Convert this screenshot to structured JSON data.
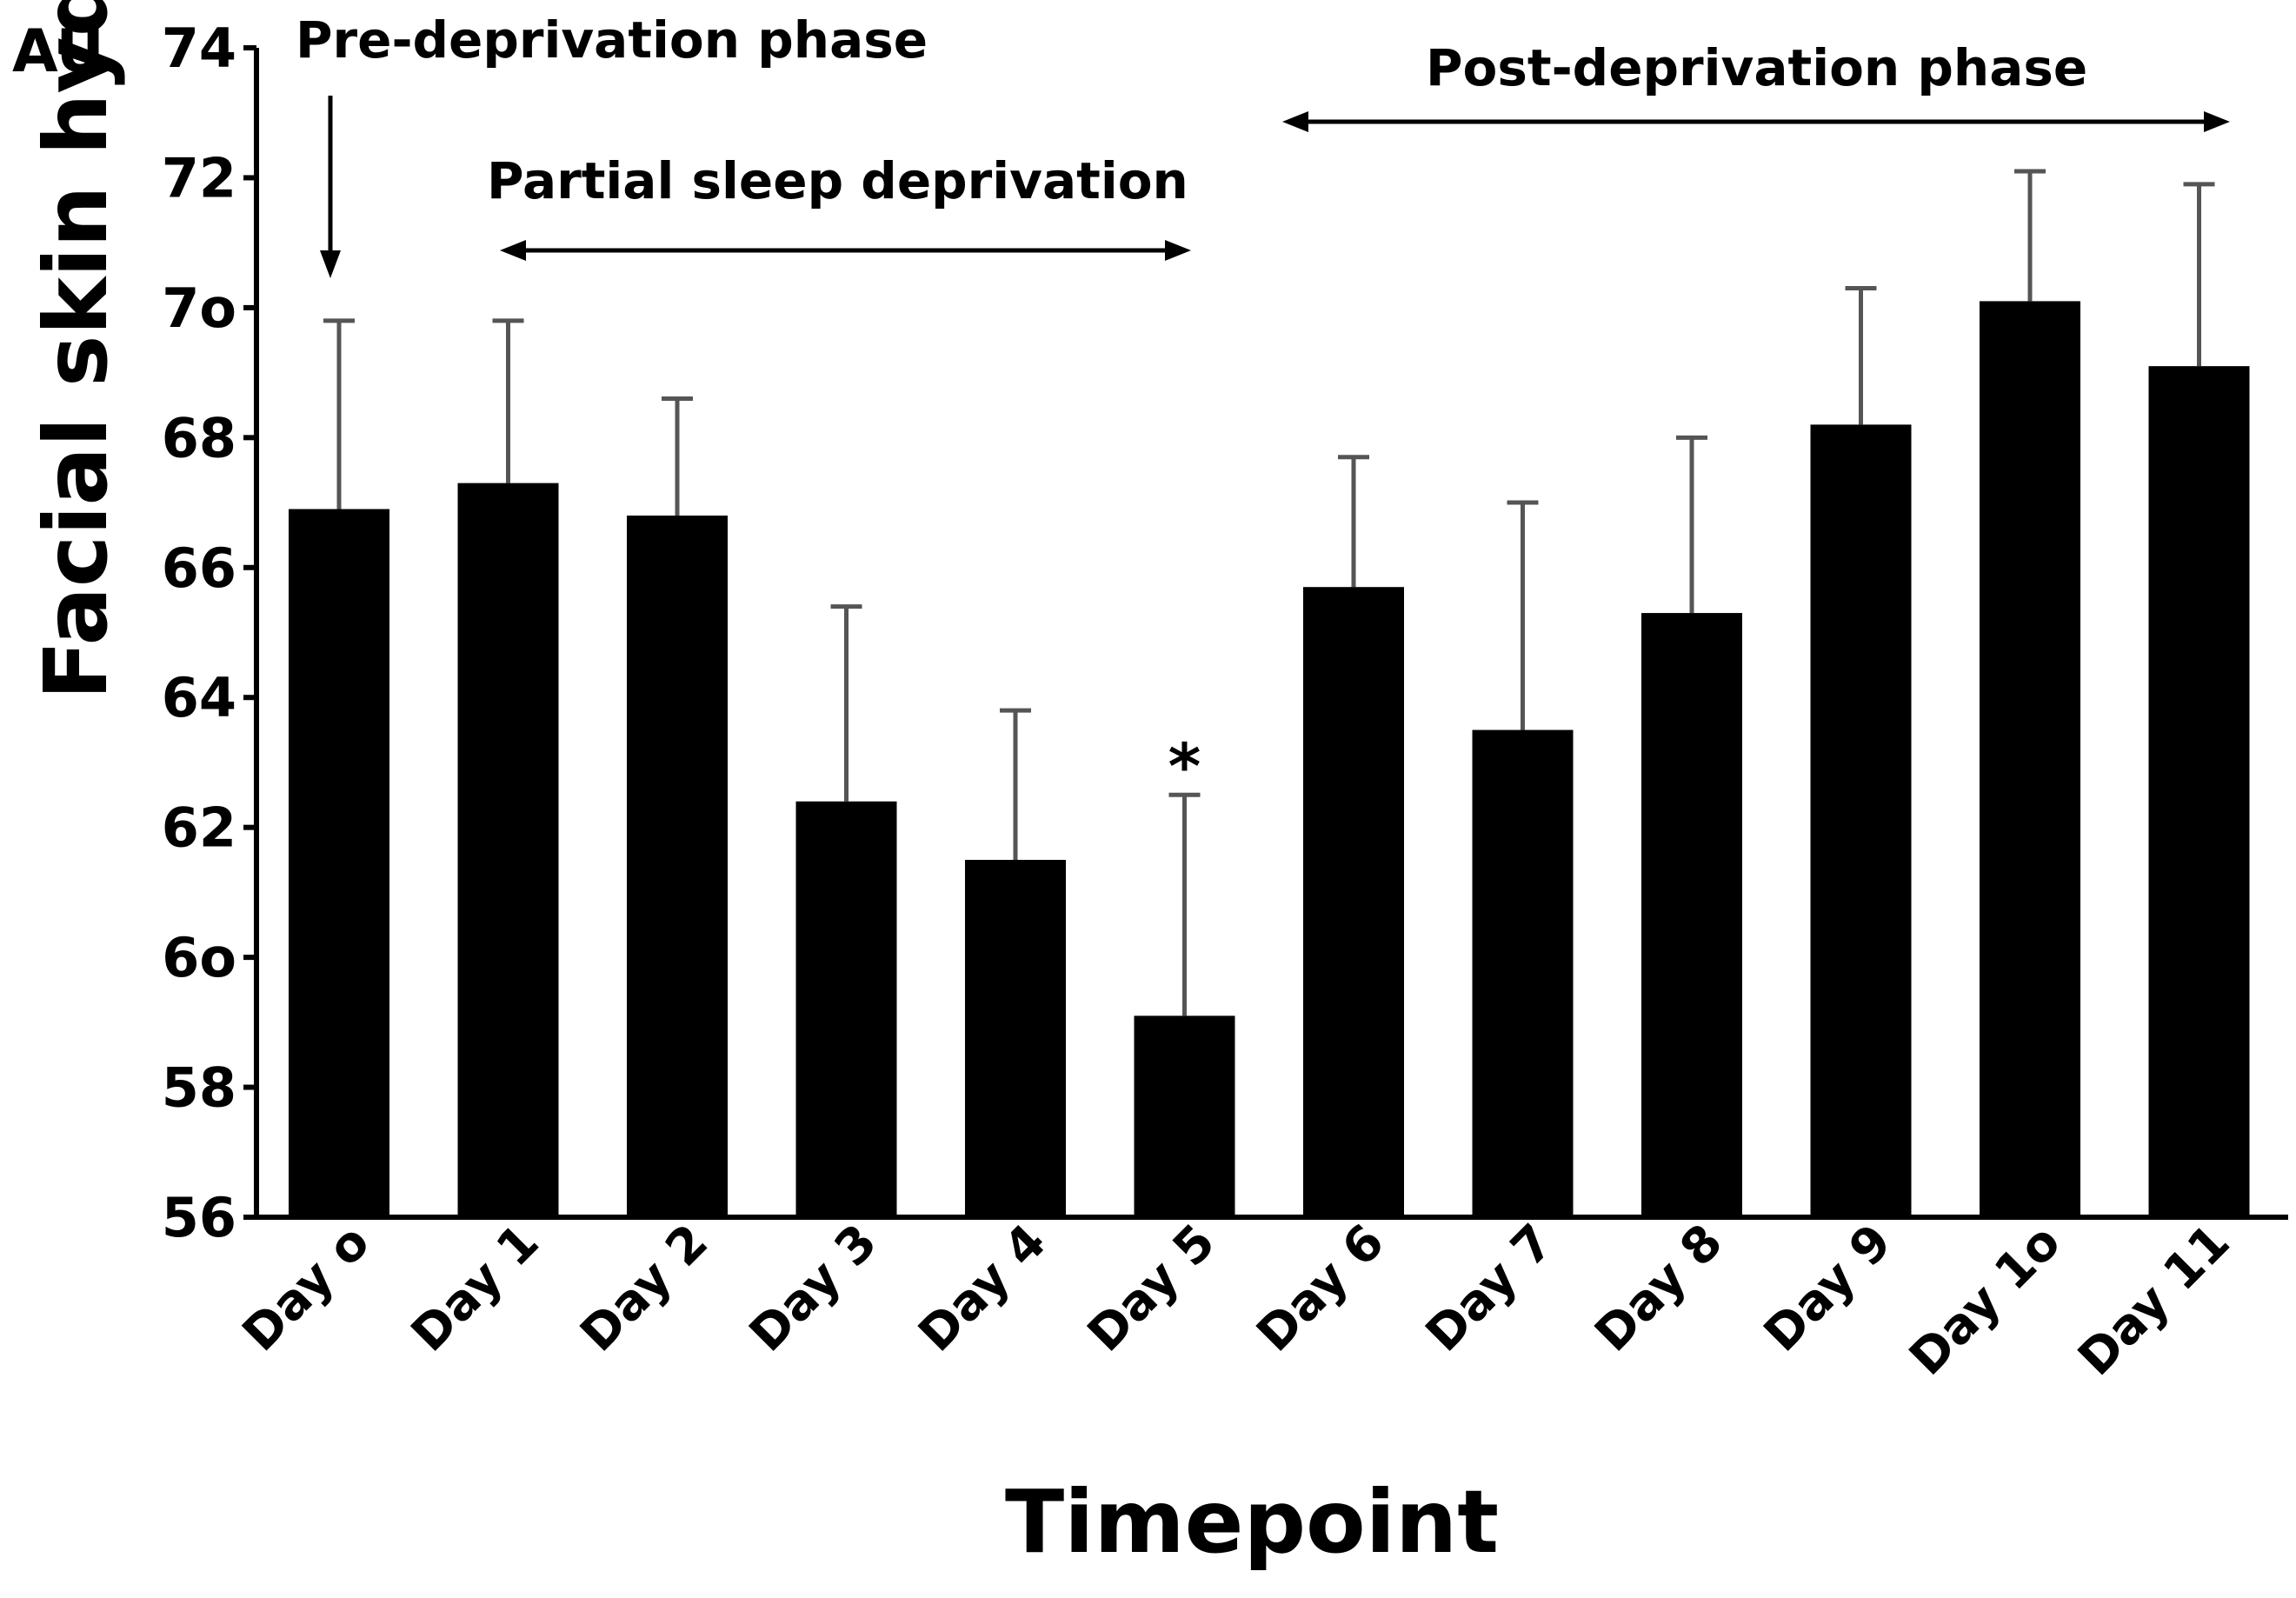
{
  "chart_data": {
    "type": "bar",
    "ylabel": "Facial skin hydration",
    "yunit": "AU",
    "xlabel": "Timepoint",
    "ylim": [
      56,
      74
    ],
    "yticks": [
      "56",
      "58",
      "6o",
      "62",
      "64",
      "66",
      "68",
      "7o",
      "72",
      "74"
    ],
    "categories": [
      "Day o",
      "Day 1",
      "Day 2",
      "Day 3",
      "Day 4",
      "Day 5",
      "Day 6",
      "Day 7",
      "Day 8",
      "Day 9",
      "Day 1o",
      "Day 11"
    ],
    "values": [
      66.9,
      67.3,
      66.8,
      62.4,
      61.5,
      59.1,
      65.7,
      63.5,
      65.3,
      68.2,
      70.1,
      69.1
    ],
    "errors": [
      2.9,
      2.5,
      1.8,
      3.0,
      2.3,
      3.4,
      2.0,
      3.5,
      2.7,
      2.1,
      2.0,
      2.8
    ],
    "significance_marker": "*",
    "phases": {
      "pre": "Pre-deprivation phase",
      "partial": "Partial sleep deprivation",
      "post": "Post-deprivation phase"
    }
  },
  "colors": {
    "bar": "#000000",
    "error": "#555555",
    "axis": "#000000"
  }
}
